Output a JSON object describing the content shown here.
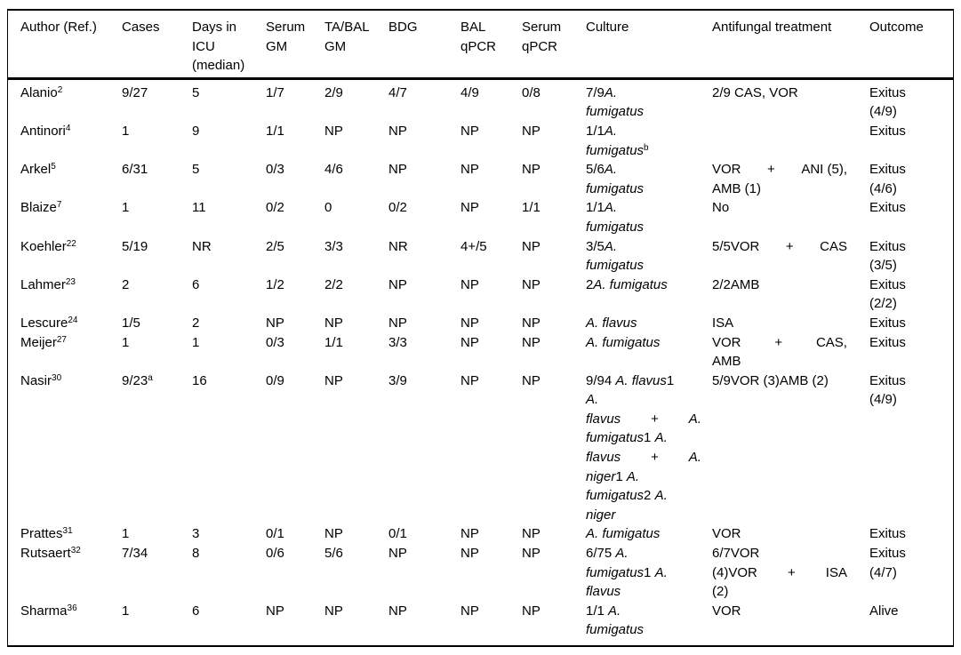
{
  "table": {
    "columns": [
      {
        "id": "author",
        "label_lines": [
          "Author (Ref.)"
        ]
      },
      {
        "id": "cases",
        "label_lines": [
          "Cases"
        ]
      },
      {
        "id": "days_icu",
        "label_lines": [
          "Days in",
          "ICU",
          "(median)"
        ]
      },
      {
        "id": "serum_gm",
        "label_lines": [
          "Serum",
          "GM"
        ]
      },
      {
        "id": "ta_bal_gm",
        "label_lines": [
          "TA/BAL",
          "GM"
        ]
      },
      {
        "id": "bdg",
        "label_lines": [
          "BDG"
        ]
      },
      {
        "id": "bal_qpcr",
        "label_lines": [
          "BAL",
          "qPCR"
        ]
      },
      {
        "id": "serum_qpcr",
        "label_lines": [
          "Serum",
          "qPCR"
        ]
      },
      {
        "id": "culture",
        "label_lines": [
          "Culture"
        ]
      },
      {
        "id": "treatment",
        "label_lines": [
          "Antifungal treatment"
        ]
      },
      {
        "id": "outcome",
        "label_lines": [
          "Outcome"
        ]
      }
    ],
    "rows": [
      {
        "author": {
          "name": "Alanio",
          "ref": "2"
        },
        "cases": {
          "t": "9/27",
          "sup": ""
        },
        "days_icu": "5",
        "serum_gm": "1/7",
        "ta_bal_gm": "2/9",
        "bdg": "4/7",
        "bal_qpcr": "4/9",
        "serum_qpcr": "0/8",
        "culture": [
          {
            "j": false,
            "g": [
              [
                {
                  "t": "7/9"
                },
                {
                  "t": "A.",
                  "i": true
                }
              ]
            ]
          },
          {
            "j": false,
            "g": [
              [
                {
                  "t": "fumigatus",
                  "i": true
                }
              ]
            ]
          }
        ],
        "treatment": [
          {
            "j": false,
            "g": [
              [
                {
                  "t": "2/9 CAS, VOR"
                }
              ]
            ]
          }
        ],
        "outcome": [
          "Exitus",
          "(4/9)"
        ]
      },
      {
        "author": {
          "name": "Antinori",
          "ref": "4"
        },
        "cases": {
          "t": "1",
          "sup": ""
        },
        "days_icu": "9",
        "serum_gm": "1/1",
        "ta_bal_gm": "NP",
        "bdg": "NP",
        "bal_qpcr": "NP",
        "serum_qpcr": "NP",
        "culture": [
          {
            "j": false,
            "g": [
              [
                {
                  "t": "1/1"
                },
                {
                  "t": "A.",
                  "i": true
                }
              ]
            ]
          },
          {
            "j": false,
            "g": [
              [
                {
                  "t": "fumigatus",
                  "i": true
                },
                {
                  "t": "b",
                  "s": true
                }
              ]
            ]
          }
        ],
        "treatment": [],
        "outcome": [
          "Exitus"
        ]
      },
      {
        "author": {
          "name": "Arkel",
          "ref": "5"
        },
        "cases": {
          "t": "6/31",
          "sup": ""
        },
        "days_icu": "5",
        "serum_gm": "0/3",
        "ta_bal_gm": "4/6",
        "bdg": "NP",
        "bal_qpcr": "NP",
        "serum_qpcr": "NP",
        "culture": [
          {
            "j": false,
            "g": [
              [
                {
                  "t": "5/6"
                },
                {
                  "t": "A.",
                  "i": true
                }
              ]
            ]
          },
          {
            "j": false,
            "g": [
              [
                {
                  "t": "fumigatus",
                  "i": true
                }
              ]
            ]
          }
        ],
        "treatment": [
          {
            "j": true,
            "g": [
              [
                {
                  "t": "VOR"
                }
              ],
              [
                {
                  "t": "+"
                }
              ],
              [
                {
                  "t": "ANI (5),"
                }
              ]
            ]
          },
          {
            "j": false,
            "g": [
              [
                {
                  "t": "AMB (1)"
                }
              ]
            ]
          }
        ],
        "outcome": [
          "Exitus",
          "(4/6)"
        ]
      },
      {
        "author": {
          "name": "Blaize",
          "ref": "7"
        },
        "cases": {
          "t": "1",
          "sup": ""
        },
        "days_icu": "11",
        "serum_gm": "0/2",
        "ta_bal_gm": "0",
        "bdg": "0/2",
        "bal_qpcr": "NP",
        "serum_qpcr": "1/1",
        "culture": [
          {
            "j": false,
            "g": [
              [
                {
                  "t": "1/1"
                },
                {
                  "t": "A.",
                  "i": true
                }
              ]
            ]
          },
          {
            "j": false,
            "g": [
              [
                {
                  "t": "fumigatus",
                  "i": true
                }
              ]
            ]
          }
        ],
        "treatment": [
          {
            "j": false,
            "g": [
              [
                {
                  "t": "No"
                }
              ]
            ]
          }
        ],
        "outcome": [
          "Exitus"
        ]
      },
      {
        "author": {
          "name": "Koehler",
          "ref": "22"
        },
        "cases": {
          "t": "5/19",
          "sup": ""
        },
        "days_icu": "NR",
        "serum_gm": "2/5",
        "ta_bal_gm": "3/3",
        "bdg": "NR",
        "bal_qpcr": "4+/5",
        "serum_qpcr": "NP",
        "culture": [
          {
            "j": false,
            "g": [
              [
                {
                  "t": "3/5"
                },
                {
                  "t": "A.",
                  "i": true
                }
              ]
            ]
          },
          {
            "j": false,
            "g": [
              [
                {
                  "t": "fumigatus",
                  "i": true
                }
              ]
            ]
          }
        ],
        "treatment": [
          {
            "j": true,
            "g": [
              [
                {
                  "t": "5/5VOR"
                }
              ],
              [
                {
                  "t": "+"
                }
              ],
              [
                {
                  "t": "CAS"
                }
              ]
            ]
          }
        ],
        "outcome": [
          "Exitus",
          "(3/5)"
        ]
      },
      {
        "author": {
          "name": "Lahmer",
          "ref": "23"
        },
        "cases": {
          "t": "2",
          "sup": ""
        },
        "days_icu": "6",
        "serum_gm": "1/2",
        "ta_bal_gm": "2/2",
        "bdg": "NP",
        "bal_qpcr": "NP",
        "serum_qpcr": "NP",
        "culture": [
          {
            "j": false,
            "g": [
              [
                {
                  "t": "2"
                },
                {
                  "t": "A. fumigatus",
                  "i": true
                }
              ]
            ]
          }
        ],
        "treatment": [
          {
            "j": false,
            "g": [
              [
                {
                  "t": "2/2AMB"
                }
              ]
            ]
          }
        ],
        "outcome": [
          "Exitus",
          "(2/2)"
        ]
      },
      {
        "author": {
          "name": "Lescure",
          "ref": "24"
        },
        "cases": {
          "t": "1/5",
          "sup": ""
        },
        "days_icu": "2",
        "serum_gm": "NP",
        "ta_bal_gm": "NP",
        "bdg": "NP",
        "bal_qpcr": "NP",
        "serum_qpcr": "NP",
        "culture": [
          {
            "j": false,
            "g": [
              [
                {
                  "t": "A. flavus",
                  "i": true
                }
              ]
            ]
          }
        ],
        "treatment": [
          {
            "j": false,
            "g": [
              [
                {
                  "t": "ISA"
                }
              ]
            ]
          }
        ],
        "outcome": [
          "Exitus"
        ]
      },
      {
        "author": {
          "name": "Meijer",
          "ref": "27"
        },
        "cases": {
          "t": "1",
          "sup": ""
        },
        "days_icu": "1",
        "serum_gm": "0/3",
        "ta_bal_gm": "1/1",
        "bdg": "3/3",
        "bal_qpcr": "NP",
        "serum_qpcr": "NP",
        "culture": [
          {
            "j": false,
            "g": [
              [
                {
                  "t": "A. fumigatus",
                  "i": true
                }
              ]
            ]
          }
        ],
        "treatment": [
          {
            "j": true,
            "g": [
              [
                {
                  "t": "VOR"
                }
              ],
              [
                {
                  "t": "+"
                }
              ],
              [
                {
                  "t": "CAS,"
                }
              ]
            ]
          },
          {
            "j": false,
            "g": [
              [
                {
                  "t": "AMB"
                }
              ]
            ]
          }
        ],
        "outcome": [
          "Exitus"
        ]
      },
      {
        "author": {
          "name": "Nasir",
          "ref": "30"
        },
        "cases": {
          "t": "9/23",
          "sup": "a"
        },
        "days_icu": "16",
        "serum_gm": "0/9",
        "ta_bal_gm": "NP",
        "bdg": "3/9",
        "bal_qpcr": "NP",
        "serum_qpcr": "NP",
        "culture": [
          {
            "j": false,
            "g": [
              [
                {
                  "t": "9/94 "
                },
                {
                  "t": "A. flavus",
                  "i": true
                },
                {
                  "t": "1"
                }
              ]
            ]
          },
          {
            "j": false,
            "g": [
              [
                {
                  "t": "A.",
                  "i": true
                }
              ]
            ]
          },
          {
            "j": true,
            "g": [
              [
                {
                  "t": "flavus",
                  "i": true
                }
              ],
              [
                {
                  "t": "+"
                }
              ],
              [
                {
                  "t": "A.",
                  "i": true
                }
              ]
            ]
          },
          {
            "j": false,
            "g": [
              [
                {
                  "t": "fumigatus",
                  "i": true
                },
                {
                  "t": "1 "
                },
                {
                  "t": "A.",
                  "i": true
                }
              ]
            ]
          },
          {
            "j": true,
            "g": [
              [
                {
                  "t": "flavus",
                  "i": true
                }
              ],
              [
                {
                  "t": "+"
                }
              ],
              [
                {
                  "t": "A.",
                  "i": true
                }
              ]
            ]
          },
          {
            "j": false,
            "g": [
              [
                {
                  "t": "niger",
                  "i": true
                },
                {
                  "t": "1 "
                },
                {
                  "t": "A.",
                  "i": true
                }
              ]
            ]
          },
          {
            "j": false,
            "g": [
              [
                {
                  "t": "fumigatus",
                  "i": true
                },
                {
                  "t": "2 "
                },
                {
                  "t": "A.",
                  "i": true
                }
              ]
            ]
          },
          {
            "j": false,
            "g": [
              [
                {
                  "t": "niger",
                  "i": true
                }
              ]
            ]
          }
        ],
        "treatment": [
          {
            "j": false,
            "g": [
              [
                {
                  "t": "5/9VOR (3)AMB (2)"
                }
              ]
            ]
          }
        ],
        "outcome": [
          "Exitus",
          "(4/9)"
        ]
      },
      {
        "author": {
          "name": "Prattes",
          "ref": "31"
        },
        "cases": {
          "t": "1",
          "sup": ""
        },
        "days_icu": "3",
        "serum_gm": "0/1",
        "ta_bal_gm": "NP",
        "bdg": "0/1",
        "bal_qpcr": "NP",
        "serum_qpcr": "NP",
        "culture": [
          {
            "j": false,
            "g": [
              [
                {
                  "t": "A. fumigatus",
                  "i": true
                }
              ]
            ]
          }
        ],
        "treatment": [
          {
            "j": false,
            "g": [
              [
                {
                  "t": "VOR"
                }
              ]
            ]
          }
        ],
        "outcome": [
          "Exitus"
        ]
      },
      {
        "author": {
          "name": "Rutsaert",
          "ref": "32"
        },
        "cases": {
          "t": "7/34",
          "sup": ""
        },
        "days_icu": "8",
        "serum_gm": "0/6",
        "ta_bal_gm": "5/6",
        "bdg": "NP",
        "bal_qpcr": "NP",
        "serum_qpcr": "NP",
        "culture": [
          {
            "j": false,
            "g": [
              [
                {
                  "t": "6/75 "
                },
                {
                  "t": "A.",
                  "i": true
                }
              ]
            ]
          },
          {
            "j": false,
            "g": [
              [
                {
                  "t": "fumigatus",
                  "i": true
                },
                {
                  "t": "1 "
                },
                {
                  "t": "A.",
                  "i": true
                }
              ]
            ]
          },
          {
            "j": false,
            "g": [
              [
                {
                  "t": "flavus",
                  "i": true
                }
              ]
            ]
          }
        ],
        "treatment": [
          {
            "j": false,
            "g": [
              [
                {
                  "t": "6/7VOR"
                }
              ]
            ]
          },
          {
            "j": true,
            "g": [
              [
                {
                  "t": "(4)VOR"
                }
              ],
              [
                {
                  "t": "+"
                }
              ],
              [
                {
                  "t": "ISA"
                }
              ]
            ]
          },
          {
            "j": false,
            "g": [
              [
                {
                  "t": "(2)"
                }
              ]
            ]
          }
        ],
        "outcome": [
          "Exitus",
          "(4/7)"
        ]
      },
      {
        "author": {
          "name": "Sharma",
          "ref": "36"
        },
        "cases": {
          "t": "1",
          "sup": ""
        },
        "days_icu": "6",
        "serum_gm": "NP",
        "ta_bal_gm": "NP",
        "bdg": "NP",
        "bal_qpcr": "NP",
        "serum_qpcr": "NP",
        "culture": [
          {
            "j": false,
            "g": [
              [
                {
                  "t": "1/1 "
                },
                {
                  "t": "A.",
                  "i": true
                }
              ]
            ]
          },
          {
            "j": false,
            "g": [
              [
                {
                  "t": "fumigatus",
                  "i": true
                }
              ]
            ]
          }
        ],
        "treatment": [
          {
            "j": false,
            "g": [
              [
                {
                  "t": "VOR"
                }
              ]
            ]
          }
        ],
        "outcome": [
          "Alive"
        ]
      }
    ]
  }
}
